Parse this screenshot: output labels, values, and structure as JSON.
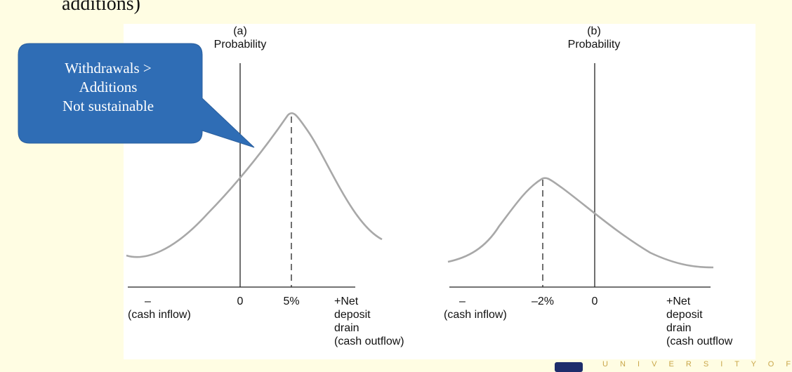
{
  "slide": {
    "heading_fragment": "additions)",
    "footer_wordmark": "U N I V E R S I T Y O F"
  },
  "callout": {
    "lines": [
      "Withdrawals >",
      "Additions",
      "Not sustainable"
    ],
    "color": "#2F6DB5"
  },
  "panel_a": {
    "label": "(a)",
    "ylabel": "Probability",
    "x_left_symbol": "–",
    "x_left_caption": "(cash inflow)",
    "tick_zero": "0",
    "tick_mean": "5%",
    "x_right_lines": [
      "+Net",
      "deposit",
      "drain",
      "(cash outflow)"
    ]
  },
  "panel_b": {
    "label": "(b)",
    "ylabel": "Probability",
    "x_left_symbol": "–",
    "x_left_caption": "(cash inflow)",
    "tick_mean": "–2%",
    "tick_zero": "0",
    "x_right_lines": [
      "+Net",
      "deposit",
      "drain",
      "(cash outflow"
    ]
  },
  "colors": {
    "curve": "#A8A8A8",
    "axis": "#222222",
    "background": "#FFFDE3",
    "panel": "#FFFFFF"
  }
}
